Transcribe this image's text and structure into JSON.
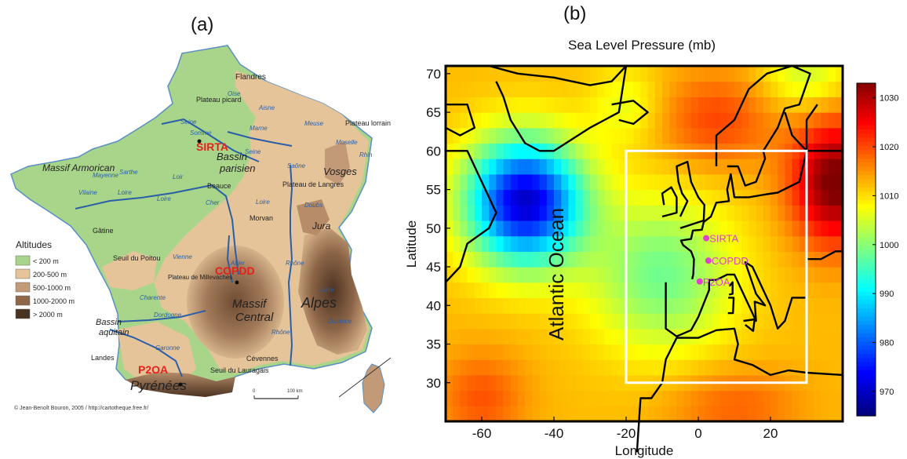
{
  "panel_a": {
    "label": "(a)",
    "legend_title": "Altitudes",
    "legend_items": [
      {
        "label": "< 200 m",
        "color": "#a9d58a"
      },
      {
        "label": "200-500 m",
        "color": "#e6c49a"
      },
      {
        "label": "500-1000 m",
        "color": "#c39a77"
      },
      {
        "label": "1000-2000 m",
        "color": "#8e6648"
      },
      {
        "label": "> 2000 m",
        "color": "#4a3222"
      }
    ],
    "sites": [
      {
        "name": "SIRTA",
        "color": "#e8201c"
      },
      {
        "name": "COPDD",
        "color": "#e8201c"
      },
      {
        "name": "P2OA",
        "color": "#e8201c"
      }
    ],
    "regions": [
      "Flandres",
      "Plateau picard",
      "Bassin parisien",
      "Massif Armorican",
      "Plateau lorrain",
      "Vosges",
      "Plateau de Langres",
      "Beauce",
      "Morvan",
      "Jura",
      "Gâtine",
      "Seuil du Poitou",
      "Plateau de Millevaches",
      "Massif Central",
      "Alpes",
      "Bassin aquitain",
      "Landes",
      "Cévennes",
      "Seuil du Lauragais",
      "Pyrénées"
    ],
    "rivers": [
      "Somme",
      "Oise",
      "Seine",
      "Aisne",
      "Marne",
      "Meuse",
      "Moselle",
      "Rhin",
      "Seine",
      "Loire",
      "Loire",
      "Cher",
      "Allier",
      "Loire",
      "Rhône",
      "Saône",
      "Doubs",
      "Isère",
      "Durance",
      "Rhône",
      "Garonne",
      "Dordogne",
      "Charente",
      "Vienne",
      "Vilaine",
      "Mayenne",
      "Sarthe",
      "Loir"
    ],
    "scale_labels": [
      "0",
      "100 km"
    ],
    "credit": "© Jean-Benoît Bouron, 2005 / http://cartotheque.free.fr/"
  },
  "panel_b": {
    "label": "(b)",
    "title": "Sea Level Pressure (mb)",
    "xlabel": "Longitude",
    "ylabel": "Latitude",
    "ocean_label": "Atlantic Ocean",
    "xticks": [
      -60,
      -40,
      -20,
      0,
      20
    ],
    "yticks": [
      30,
      35,
      40,
      45,
      50,
      55,
      60,
      65,
      70
    ],
    "xlim": [
      -70,
      40
    ],
    "ylim": [
      25,
      71
    ],
    "colorbar_ticks": [
      970,
      980,
      990,
      1000,
      1010,
      1020,
      1030
    ],
    "colorbar_range": [
      965,
      1033
    ],
    "domain_box": {
      "lon": [
        -20,
        30
      ],
      "lat": [
        30,
        60
      ],
      "color": "#ffffff"
    },
    "stations": [
      {
        "name": "SIRTA",
        "lon": 2.2,
        "lat": 48.7
      },
      {
        "name": "COPDD",
        "lon": 2.8,
        "lat": 45.8
      },
      {
        "name": "P2OA",
        "lon": 0.4,
        "lat": 43.1
      }
    ],
    "station_color": "#e040d0"
  }
}
